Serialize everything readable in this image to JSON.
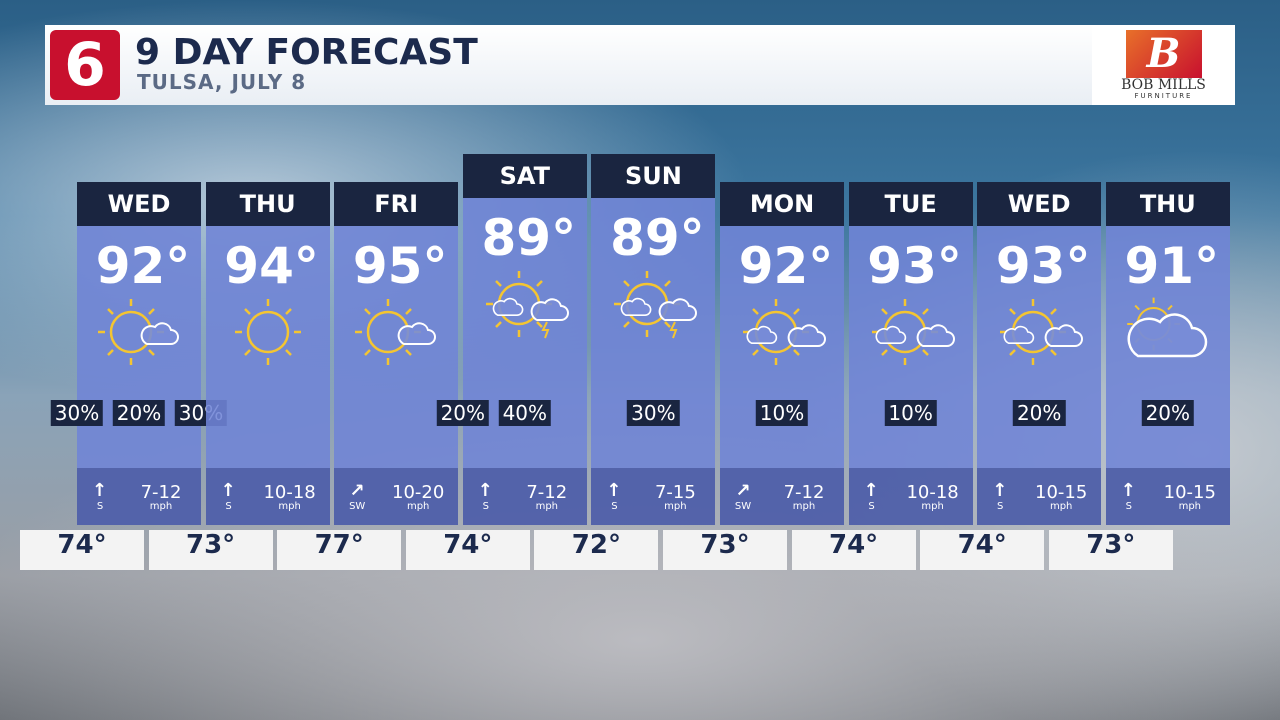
{
  "header": {
    "logo": "6",
    "title": "9 DAY FORECAST",
    "subtitle": "TULSA, JULY 8",
    "sponsor": "BOB MILLS",
    "sponsor_tagline": "FURNITURE"
  },
  "days": [
    {
      "day": "WED",
      "high": "92°",
      "rain": [
        "30%",
        "20%",
        "30%"
      ],
      "wind_dir": "S",
      "wind_speed": "7-12",
      "wind_unit": "mph"
    },
    {
      "day": "THU",
      "high": "94°",
      "rain": [],
      "wind_dir": "S",
      "wind_speed": "10-18",
      "wind_unit": "mph"
    },
    {
      "day": "FRI",
      "high": "95°",
      "rain": [],
      "wind_dir": "SW",
      "wind_speed": "10-20",
      "wind_unit": "mph"
    },
    {
      "day": "SAT",
      "high": "89°",
      "rain": [
        "20%",
        "40%"
      ],
      "wind_dir": "S",
      "wind_speed": "7-12",
      "wind_unit": "mph"
    },
    {
      "day": "SUN",
      "high": "89°",
      "rain": [
        "30%"
      ],
      "wind_dir": "S",
      "wind_speed": "7-15",
      "wind_unit": "mph"
    },
    {
      "day": "MON",
      "high": "92°",
      "rain": [
        "10%"
      ],
      "wind_dir": "SW",
      "wind_speed": "7-12",
      "wind_unit": "mph"
    },
    {
      "day": "TUE",
      "high": "93°",
      "rain": [
        "10%"
      ],
      "wind_dir": "S",
      "wind_speed": "10-18",
      "wind_unit": "mph"
    },
    {
      "day": "WED",
      "high": "93°",
      "rain": [
        "20%"
      ],
      "wind_dir": "S",
      "wind_speed": "10-15",
      "wind_unit": "mph"
    },
    {
      "day": "THU",
      "high": "91°",
      "rain": [
        "20%"
      ],
      "wind_dir": "S",
      "wind_speed": "10-15",
      "wind_unit": "mph"
    }
  ],
  "lows": [
    "74°",
    "73°",
    "77°",
    "74°",
    "72°",
    "73°",
    "74°",
    "74°",
    "73°"
  ]
}
